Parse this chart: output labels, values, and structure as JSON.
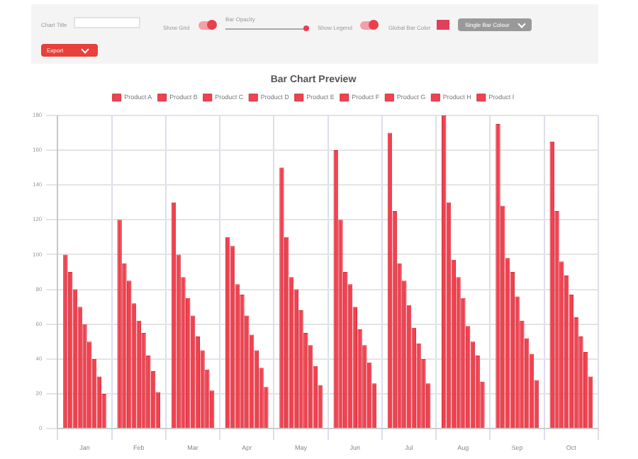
{
  "chart_data": {
    "type": "bar",
    "title": "Bar Chart Preview",
    "annotations": [
      "Chart Title",
      "Show Grid",
      "Bar Opacity",
      "Show Legend",
      "Global Bar Color",
      "Single Bar Colour",
      "Export"
    ],
    "categories": [
      "Jan",
      "Feb",
      "Mar",
      "Apr",
      "May",
      "Jun",
      "Jul",
      "Aug",
      "Sep",
      "Oct"
    ],
    "series": [
      {
        "name": "Product A",
        "color": "#f2414f",
        "values": [
          100,
          120,
          130,
          110,
          150,
          160,
          170,
          180,
          175,
          165
        ]
      },
      {
        "name": "Product B",
        "color": "#f2414f",
        "values": [
          90,
          95,
          100,
          105,
          110,
          120,
          125,
          130,
          128,
          125
        ]
      },
      {
        "name": "Product C",
        "color": "#f2414f",
        "values": [
          80,
          85,
          87,
          83,
          87,
          90,
          95,
          97,
          98,
          96
        ]
      },
      {
        "name": "Product D",
        "color": "#f2414f",
        "values": [
          70,
          72,
          75,
          77,
          80,
          83,
          85,
          87,
          90,
          88
        ]
      },
      {
        "name": "Product E",
        "color": "#f2414f",
        "values": [
          60,
          62,
          65,
          65,
          68,
          70,
          71,
          75,
          76,
          77
        ]
      },
      {
        "name": "Product F",
        "color": "#f2414f",
        "values": [
          50,
          55,
          53,
          54,
          55,
          57,
          58,
          59,
          62,
          64
        ]
      },
      {
        "name": "Product G",
        "color": "#f2414f",
        "values": [
          40,
          42,
          45,
          45,
          48,
          48,
          49,
          50,
          52,
          53
        ]
      },
      {
        "name": "Product H",
        "color": "#f2414f",
        "values": [
          30,
          33,
          34,
          35,
          36,
          38,
          40,
          42,
          43,
          44
        ]
      },
      {
        "name": "Product I",
        "color": "#f2414f",
        "values": [
          20,
          21,
          22,
          24,
          25,
          26,
          26,
          27,
          28,
          30
        ]
      }
    ],
    "ylim": [
      0,
      180
    ],
    "yticks": [
      0,
      20,
      40,
      60,
      80,
      100,
      120,
      140,
      160,
      180
    ],
    "grid": true,
    "legend": "top"
  }
}
